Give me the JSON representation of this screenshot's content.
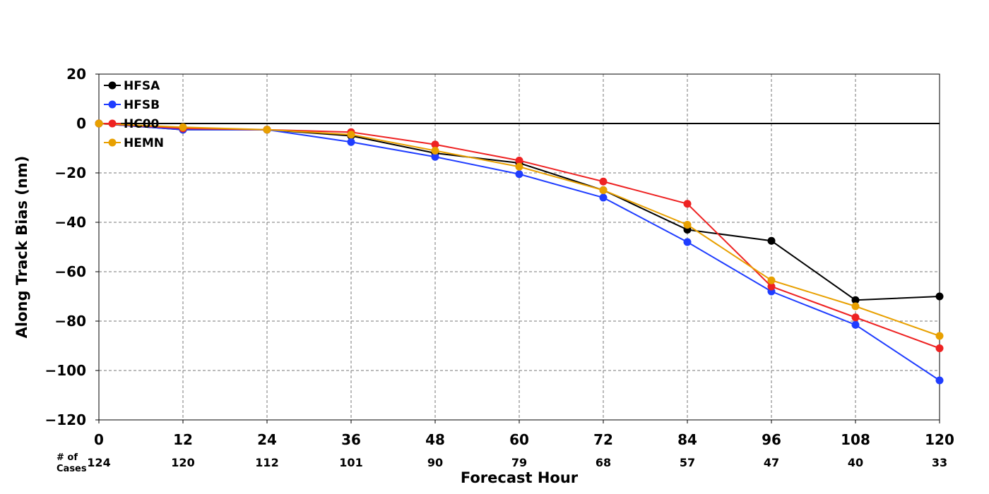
{
  "chart_data": {
    "type": "line",
    "title": "",
    "xlabel": "Forecast Hour",
    "ylabel": "Along Track Bias (nm)",
    "x": [
      0,
      12,
      24,
      36,
      48,
      60,
      72,
      84,
      96,
      108,
      120
    ],
    "xlim": [
      0,
      120
    ],
    "ylim": [
      -120,
      20
    ],
    "yticks": [
      20,
      0,
      -20,
      -40,
      -60,
      -80,
      -100,
      -120
    ],
    "ytick_labels": [
      "20",
      "0",
      "−20",
      "−40",
      "−60",
      "−80",
      "−100",
      "−120"
    ],
    "xtick_labels": [
      "0",
      "12",
      "24",
      "36",
      "48",
      "60",
      "72",
      "84",
      "96",
      "108",
      "120"
    ],
    "grid": true,
    "legend_position": "top-left",
    "cases_caption": [
      "# of",
      "Cases"
    ],
    "cases": [
      "124",
      "120",
      "112",
      "101",
      "90",
      "79",
      "68",
      "57",
      "47",
      "40",
      "33"
    ],
    "series": [
      {
        "name": "HFSA",
        "color": "#000000",
        "values": [
          0,
          -2.5,
          -2.5,
          -5,
          -12,
          -16,
          -27,
          -43,
          -47.5,
          -71.5,
          -70
        ]
      },
      {
        "name": "HFSB",
        "color": "#1f3dff",
        "values": [
          0,
          -2.5,
          -2.5,
          -7.5,
          -13.5,
          -20.5,
          -30,
          -48,
          -68,
          -81.5,
          -104
        ]
      },
      {
        "name": "HC00",
        "color": "#ee2222",
        "values": [
          0,
          -2,
          -2.5,
          -3.5,
          -8.5,
          -15,
          -23.5,
          -32.5,
          -66,
          -78.5,
          -91
        ]
      },
      {
        "name": "HEMN",
        "color": "#e8a000",
        "values": [
          0,
          -1.5,
          -2.5,
          -4.5,
          -11,
          -17.5,
          -27,
          -41,
          -63.5,
          -74,
          -86
        ]
      }
    ]
  }
}
